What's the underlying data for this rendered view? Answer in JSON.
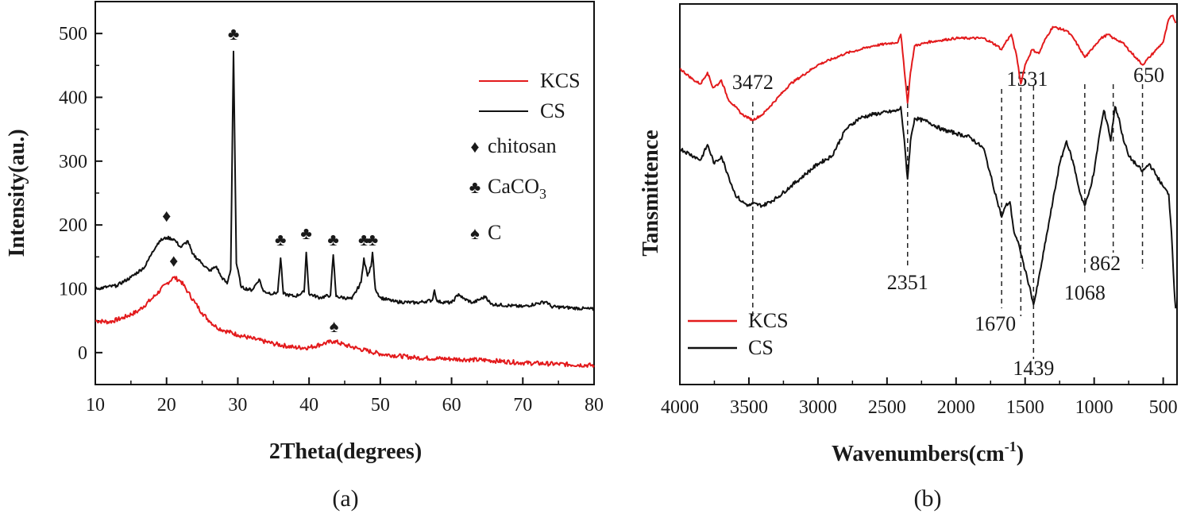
{
  "chart_data": [
    {
      "type": "line",
      "caption": "(a)",
      "xlabel": "2Theta(degrees)",
      "ylabel": "Intensity(au.)",
      "xlim": [
        10,
        80
      ],
      "ylim": [
        -50,
        550
      ],
      "xticks": [
        10,
        20,
        30,
        40,
        50,
        60,
        70,
        80
      ],
      "yticks": [
        0,
        100,
        200,
        300,
        400,
        500
      ],
      "legend_position": "top-right",
      "series": [
        {
          "name": "KCS",
          "color": "#e31a1c",
          "points": [
            [
              10,
              50
            ],
            [
              12,
              48
            ],
            [
              14,
              55
            ],
            [
              16,
              65
            ],
            [
              18,
              85
            ],
            [
              20,
              108
            ],
            [
              21,
              118
            ],
            [
              22,
              112
            ],
            [
              23,
              95
            ],
            [
              24,
              78
            ],
            [
              25,
              62
            ],
            [
              26,
              50
            ],
            [
              27,
              40
            ],
            [
              28,
              35
            ],
            [
              30,
              28
            ],
            [
              32,
              22
            ],
            [
              35,
              14
            ],
            [
              38,
              8
            ],
            [
              40,
              8
            ],
            [
              42,
              14
            ],
            [
              43.5,
              18
            ],
            [
              45,
              12
            ],
            [
              47,
              6
            ],
            [
              50,
              -2
            ],
            [
              55,
              -8
            ],
            [
              60,
              -10
            ],
            [
              65,
              -12
            ],
            [
              70,
              -16
            ],
            [
              75,
              -18
            ],
            [
              80,
              -20
            ]
          ]
        },
        {
          "name": "CS",
          "color": "#111111",
          "points": [
            [
              10,
              100
            ],
            [
              13,
              105
            ],
            [
              15,
              118
            ],
            [
              17,
              135
            ],
            [
              18,
              158
            ],
            [
              19,
              175
            ],
            [
              20,
              180
            ],
            [
              21,
              178
            ],
            [
              22,
              165
            ],
            [
              23,
              175
            ],
            [
              23.6,
              155
            ],
            [
              25,
              140
            ],
            [
              26,
              128
            ],
            [
              27,
              135
            ],
            [
              27.6,
              120
            ],
            [
              28.5,
              108
            ],
            [
              29,
              130
            ],
            [
              29.4,
              472
            ],
            [
              29.8,
              140
            ],
            [
              30.5,
              102
            ],
            [
              32,
              98
            ],
            [
              33,
              115
            ],
            [
              33.6,
              96
            ],
            [
              35,
              92
            ],
            [
              35.6,
              95
            ],
            [
              36,
              148
            ],
            [
              36.4,
              92
            ],
            [
              38,
              88
            ],
            [
              39.3,
              95
            ],
            [
              39.6,
              157
            ],
            [
              40,
              92
            ],
            [
              41.5,
              86
            ],
            [
              43,
              90
            ],
            [
              43.4,
              153
            ],
            [
              43.8,
              88
            ],
            [
              46,
              84
            ],
            [
              47.3,
              110
            ],
            [
              47.7,
              148
            ],
            [
              48.2,
              120
            ],
            [
              48.7,
              135
            ],
            [
              48.9,
              157
            ],
            [
              49.3,
              100
            ],
            [
              50,
              86
            ],
            [
              52,
              80
            ],
            [
              55,
              78
            ],
            [
              57.3,
              82
            ],
            [
              57.6,
              98
            ],
            [
              58,
              80
            ],
            [
              60,
              78
            ],
            [
              61,
              92
            ],
            [
              61.6,
              85
            ],
            [
              63,
              78
            ],
            [
              64.8,
              88
            ],
            [
              65.5,
              76
            ],
            [
              70,
              72
            ],
            [
              73.3,
              80
            ],
            [
              74,
              72
            ],
            [
              77,
              70
            ],
            [
              80,
              68
            ]
          ]
        }
      ],
      "peak_markers": [
        {
          "symbol": "♦",
          "x": 20,
          "y": 205
        },
        {
          "symbol": "♦",
          "x": 21,
          "y": 135
        },
        {
          "symbol": "♣",
          "x": 29.4,
          "y": 490
        },
        {
          "symbol": "♣",
          "x": 36,
          "y": 168
        },
        {
          "symbol": "♣",
          "x": 39.6,
          "y": 178
        },
        {
          "symbol": "♣",
          "x": 43.4,
          "y": 168
        },
        {
          "symbol": "♣",
          "x": 47.7,
          "y": 168
        },
        {
          "symbol": "♣",
          "x": 48.9,
          "y": 168
        },
        {
          "symbol": "♠",
          "x": 43.5,
          "y": 32
        }
      ],
      "legend": [
        {
          "label": "KCS",
          "kind": "line",
          "color": "#e31a1c"
        },
        {
          "label": "CS",
          "kind": "line",
          "color": "#111111"
        },
        {
          "label": "chitosan",
          "kind": "symbol",
          "symbol": "♦"
        },
        {
          "label": "CaCO",
          "subscript": "3",
          "kind": "symbol",
          "symbol": "♣"
        },
        {
          "label": "C",
          "kind": "symbol",
          "symbol": "♠"
        }
      ]
    },
    {
      "type": "line",
      "caption": "(b)",
      "xlabel": "Wavenumbers(cm",
      "xlabel_sup": "-1",
      "xlabel_close": ")",
      "ylabel": "Tansmittence",
      "xlim": [
        4000,
        400
      ],
      "ylim": [
        0,
        100
      ],
      "xticks": [
        4000,
        3500,
        3000,
        2500,
        2000,
        1500,
        1000,
        500
      ],
      "legend_position": "bottom-left",
      "series": [
        {
          "name": "KCS",
          "color": "#e31a1c",
          "points": [
            [
              4000,
              83
            ],
            [
              3900,
              80
            ],
            [
              3850,
              79
            ],
            [
              3800,
              82
            ],
            [
              3760,
              78
            ],
            [
              3720,
              79
            ],
            [
              3700,
              80
            ],
            [
              3650,
              75
            ],
            [
              3600,
              73
            ],
            [
              3550,
              71
            ],
            [
              3500,
              70
            ],
            [
              3472,
              69.5
            ],
            [
              3400,
              71
            ],
            [
              3300,
              75
            ],
            [
              3200,
              79
            ],
            [
              3000,
              84
            ],
            [
              2800,
              87
            ],
            [
              2600,
              89
            ],
            [
              2420,
              90
            ],
            [
              2400,
              92
            ],
            [
              2380,
              85
            ],
            [
              2351,
              74
            ],
            [
              2330,
              82
            ],
            [
              2300,
              89
            ],
            [
              2200,
              90
            ],
            [
              2000,
              91
            ],
            [
              1800,
              91
            ],
            [
              1700,
              89
            ],
            [
              1670,
              88
            ],
            [
              1640,
              90
            ],
            [
              1600,
              92
            ],
            [
              1560,
              86
            ],
            [
              1531,
              79
            ],
            [
              1500,
              84
            ],
            [
              1450,
              88
            ],
            [
              1400,
              87
            ],
            [
              1350,
              91
            ],
            [
              1300,
              94
            ],
            [
              1200,
              93
            ],
            [
              1150,
              91
            ],
            [
              1100,
              88
            ],
            [
              1068,
              86
            ],
            [
              1040,
              87
            ],
            [
              1000,
              89
            ],
            [
              950,
              91
            ],
            [
              900,
              92
            ],
            [
              862,
              91
            ],
            [
              800,
              90
            ],
            [
              700,
              86
            ],
            [
              650,
              84
            ],
            [
              600,
              86
            ],
            [
              550,
              88
            ],
            [
              500,
              90
            ],
            [
              460,
              96
            ],
            [
              430,
              97
            ],
            [
              410,
              95
            ]
          ]
        },
        {
          "name": "CS",
          "color": "#111111",
          "points": [
            [
              4000,
              62
            ],
            [
              3900,
              60
            ],
            [
              3850,
              59
            ],
            [
              3800,
              63
            ],
            [
              3750,
              58
            ],
            [
              3700,
              60
            ],
            [
              3650,
              55
            ],
            [
              3600,
              50
            ],
            [
              3550,
              48
            ],
            [
              3500,
              47
            ],
            [
              3472,
              47.5
            ],
            [
              3400,
              47
            ],
            [
              3300,
              49
            ],
            [
              3200,
              52
            ],
            [
              3100,
              55
            ],
            [
              3000,
              58
            ],
            [
              2900,
              60
            ],
            [
              2800,
              67
            ],
            [
              2700,
              70
            ],
            [
              2600,
              71
            ],
            [
              2420,
              72
            ],
            [
              2400,
              73
            ],
            [
              2380,
              66
            ],
            [
              2351,
              54
            ],
            [
              2330,
              64
            ],
            [
              2300,
              70
            ],
            [
              2200,
              69
            ],
            [
              2100,
              67
            ],
            [
              2000,
              66
            ],
            [
              1900,
              65
            ],
            [
              1800,
              62
            ],
            [
              1750,
              55
            ],
            [
              1700,
              48
            ],
            [
              1670,
              44
            ],
            [
              1640,
              47
            ],
            [
              1610,
              48
            ],
            [
              1580,
              40
            ],
            [
              1540,
              36
            ],
            [
              1500,
              30
            ],
            [
              1470,
              26
            ],
            [
              1439,
              21
            ],
            [
              1420,
              24
            ],
            [
              1380,
              32
            ],
            [
              1340,
              40
            ],
            [
              1300,
              48
            ],
            [
              1250,
              58
            ],
            [
              1200,
              64
            ],
            [
              1150,
              58
            ],
            [
              1100,
              50
            ],
            [
              1068,
              47
            ],
            [
              1040,
              50
            ],
            [
              1000,
              56
            ],
            [
              960,
              66
            ],
            [
              930,
              72
            ],
            [
              900,
              68
            ],
            [
              880,
              64
            ],
            [
              850,
              73
            ],
            [
              820,
              70
            ],
            [
              800,
              66
            ],
            [
              750,
              60
            ],
            [
              700,
              58
            ],
            [
              650,
              56
            ],
            [
              600,
              58
            ],
            [
              550,
              55
            ],
            [
              500,
              52
            ],
            [
              460,
              50
            ],
            [
              440,
              40
            ],
            [
              420,
              25
            ],
            [
              410,
              20
            ]
          ]
        }
      ],
      "peaks": [
        {
          "label": "3472",
          "x": 3472,
          "label_position": "above"
        },
        {
          "label": "2351",
          "x": 2351,
          "label_position": "below"
        },
        {
          "label": "1670",
          "x": 1670,
          "label_position": "below"
        },
        {
          "label": "1531",
          "x": 1531,
          "label_position": "above"
        },
        {
          "label": "1439",
          "x": 1439,
          "label_position": "below"
        },
        {
          "label": "1068",
          "x": 1068,
          "label_position": "below"
        },
        {
          "label": "862",
          "x": 862,
          "label_position": "below"
        },
        {
          "label": "650",
          "x": 650,
          "label_position": "above"
        }
      ],
      "legend": [
        {
          "label": "KCS",
          "color": "#e31a1c"
        },
        {
          "label": "CS",
          "color": "#111111"
        }
      ]
    }
  ]
}
